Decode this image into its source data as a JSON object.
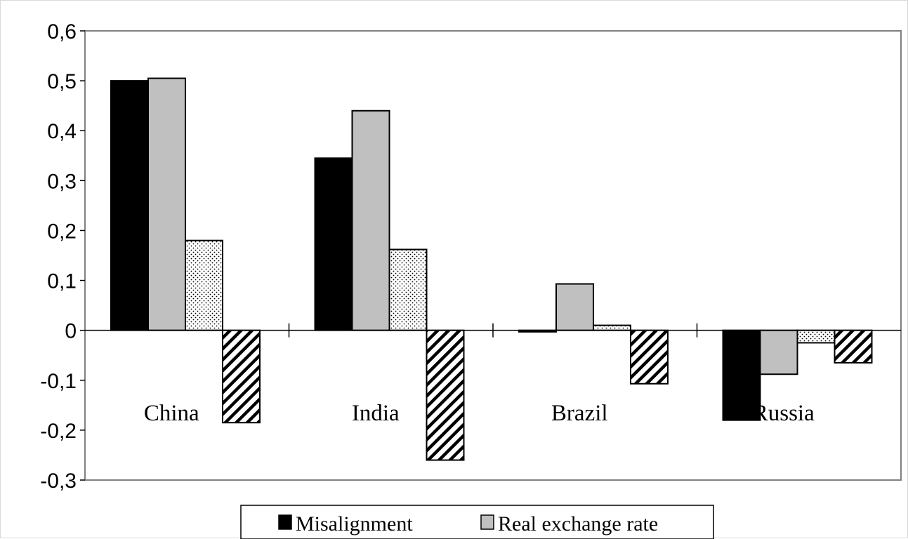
{
  "chart_data": {
    "type": "bar",
    "categories": [
      "China",
      "India",
      "Brazil",
      "Russia"
    ],
    "series": [
      {
        "name": "Misalignment",
        "values": [
          0.5,
          0.345,
          -0.003,
          -0.18
        ],
        "fill": "#000000",
        "pattern": "solid"
      },
      {
        "name": "Real exchange rate",
        "values": [
          0.505,
          0.44,
          0.093,
          -0.088
        ],
        "fill": "#c0c0c0",
        "pattern": "solid"
      },
      {
        "values": [
          0.18,
          0.162,
          0.01,
          -0.025
        ],
        "fill": "#ffffff",
        "pattern": "dots"
      },
      {
        "values": [
          -0.185,
          -0.26,
          -0.107,
          -0.065
        ],
        "fill": "#ffffff",
        "pattern": "hatch"
      }
    ],
    "ylim": [
      -0.3,
      0.6
    ],
    "yticks": [
      0.6,
      0.5,
      0.4,
      0.3,
      0.2,
      0.1,
      0,
      -0.1,
      -0.2,
      -0.3
    ],
    "ytick_labels": [
      "0,6",
      "0,5",
      "0,4",
      "0,3",
      "0,2",
      "0,1",
      "0",
      "-0,1",
      "-0,2",
      "-0,3"
    ],
    "grid": false,
    "legend": {
      "position": "bottom",
      "entries": [
        "Misalignment",
        "Real exchange rate"
      ]
    },
    "title": "",
    "xlabel": "",
    "ylabel": ""
  }
}
